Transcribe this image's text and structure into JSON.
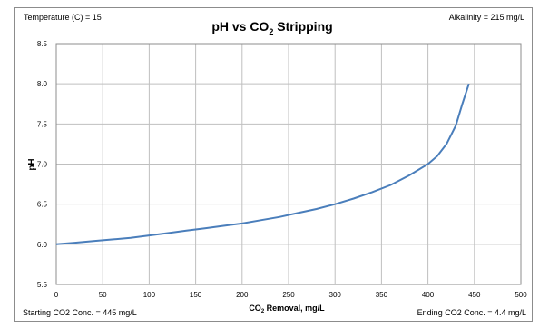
{
  "chart_data": {
    "type": "line",
    "title": "pH vs CO",
    "title_sub": "2",
    "title_suffix": " Stripping",
    "xlabel": "CO",
    "xlabel_sub": "2",
    "xlabel_suffix": " Removal, mg/L",
    "ylabel": "pH",
    "xlim": [
      0,
      500
    ],
    "ylim": [
      5.5,
      8.5
    ],
    "x_ticks": [
      "0",
      "50",
      "100",
      "150",
      "200",
      "250",
      "300",
      "350",
      "400",
      "450",
      "500"
    ],
    "y_ticks": [
      "8.5",
      "8.0",
      "7.5",
      "7.0",
      "6.5",
      "6.0",
      "5.5"
    ],
    "grid": true,
    "annotations": {
      "top_left": "Temperature (C) = 15",
      "top_right": "Alkalinity = 215 mg/L",
      "bottom_left": "Starting CO2 Conc. = 445 mg/L",
      "bottom_right": "Ending CO2 Conc. = 4.4 mg/L"
    },
    "colors": {
      "line": "#4a7ebb",
      "grid": "#bfbfbf",
      "frame": "#8c8c8c"
    },
    "series": [
      {
        "x": [
          0,
          20,
          40,
          60,
          80,
          100,
          120,
          140,
          160,
          180,
          200,
          220,
          240,
          260,
          280,
          300,
          320,
          340,
          360,
          380,
          400,
          410,
          420,
          430,
          437,
          444
        ],
        "values": [
          6.0,
          6.02,
          6.04,
          6.06,
          6.08,
          6.11,
          6.14,
          6.17,
          6.2,
          6.23,
          6.26,
          6.3,
          6.34,
          6.39,
          6.44,
          6.5,
          6.57,
          6.65,
          6.74,
          6.86,
          7.0,
          7.1,
          7.25,
          7.48,
          7.75,
          8.0
        ]
      }
    ]
  }
}
